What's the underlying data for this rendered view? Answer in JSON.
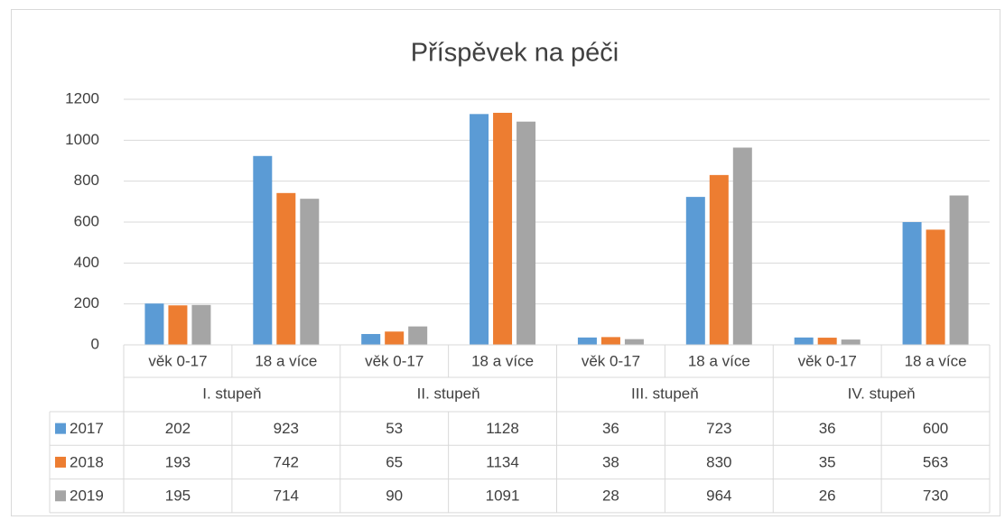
{
  "chart_data": {
    "type": "bar",
    "title": "Příspěvek na péči",
    "categories": [
      "věk 0-17",
      "18 a více",
      "věk 0-17",
      "18 a více",
      "věk 0-17",
      "18 a více",
      "věk 0-17",
      "18 a více"
    ],
    "groups": [
      "I. stupeň",
      "II. stupeň",
      "III. stupeň",
      "IV. stupeň"
    ],
    "series": [
      {
        "name": "2017",
        "color": "#5b9bd5",
        "values": [
          202,
          923,
          53,
          1128,
          36,
          723,
          36,
          600
        ]
      },
      {
        "name": "2018",
        "color": "#ed7d31",
        "values": [
          193,
          742,
          65,
          1134,
          38,
          830,
          35,
          563
        ]
      },
      {
        "name": "2019",
        "color": "#a5a5a5",
        "values": [
          195,
          714,
          90,
          1091,
          28,
          964,
          26,
          730
        ]
      }
    ],
    "ylim": [
      0,
      1200
    ],
    "yticks": [
      0,
      200,
      400,
      600,
      800,
      1000,
      1200
    ],
    "grid": true
  }
}
